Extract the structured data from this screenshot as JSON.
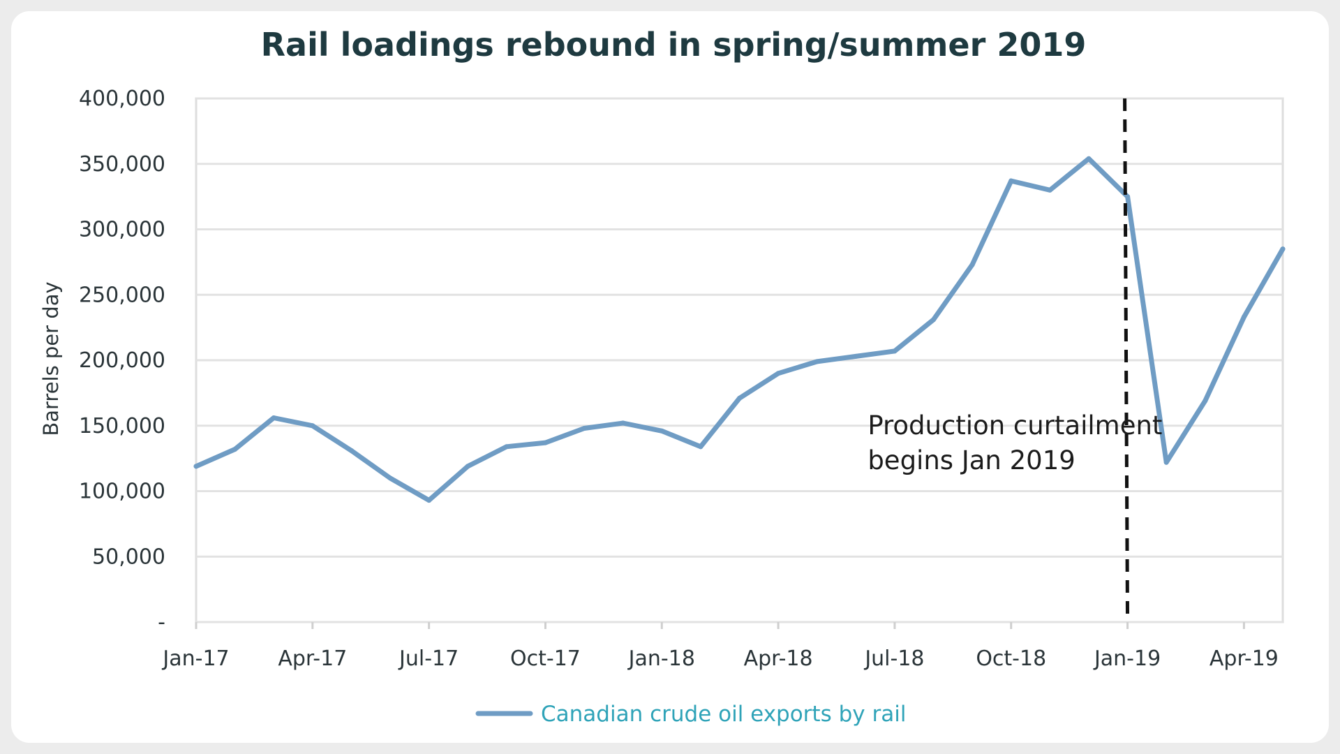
{
  "chart_data": {
    "type": "line",
    "title": "Rail loadings rebound in spring/summer 2019",
    "ylabel": "Barrels per day",
    "xlabel": "",
    "ylim": [
      0,
      400000
    ],
    "y_ticks": [
      {
        "value": 0,
        "label": "-"
      },
      {
        "value": 50000,
        "label": "50,000"
      },
      {
        "value": 100000,
        "label": "100,000"
      },
      {
        "value": 150000,
        "label": "150,000"
      },
      {
        "value": 200000,
        "label": "200,000"
      },
      {
        "value": 250000,
        "label": "250,000"
      },
      {
        "value": 300000,
        "label": "300,000"
      },
      {
        "value": 350000,
        "label": "350,000"
      },
      {
        "value": 400000,
        "label": "400,000"
      }
    ],
    "x": [
      "Jan-17",
      "Feb-17",
      "Mar-17",
      "Apr-17",
      "May-17",
      "Jun-17",
      "Jul-17",
      "Aug-17",
      "Sep-17",
      "Oct-17",
      "Nov-17",
      "Dec-17",
      "Jan-18",
      "Feb-18",
      "Mar-18",
      "Apr-18",
      "May-18",
      "Jun-18",
      "Jul-18",
      "Aug-18",
      "Sep-18",
      "Oct-18",
      "Nov-18",
      "Dec-18",
      "Jan-19",
      "Feb-19",
      "Mar-19",
      "Apr-19",
      "May-19"
    ],
    "x_tick_labels": [
      {
        "index": 0,
        "label": "Jan-17"
      },
      {
        "index": 3,
        "label": "Apr-17"
      },
      {
        "index": 6,
        "label": "Jul-17"
      },
      {
        "index": 9,
        "label": "Oct-17"
      },
      {
        "index": 12,
        "label": "Jan-18"
      },
      {
        "index": 15,
        "label": "Apr-18"
      },
      {
        "index": 18,
        "label": "Jul-18"
      },
      {
        "index": 21,
        "label": "Oct-18"
      },
      {
        "index": 24,
        "label": "Jan-19"
      },
      {
        "index": 27,
        "label": "Apr-19"
      }
    ],
    "series": [
      {
        "name": "Canadian crude oil exports by rail",
        "color": "#6f9cc4",
        "values": [
          119000,
          132000,
          156000,
          150000,
          131000,
          110000,
          93000,
          119000,
          134000,
          137000,
          148000,
          152000,
          146000,
          134000,
          171000,
          190000,
          199000,
          203000,
          207000,
          231000,
          273000,
          337000,
          330000,
          354000,
          325000,
          122000,
          169000,
          233000,
          285000
        ]
      }
    ],
    "reference_line": {
      "x": "Jan-19",
      "style": "dashed",
      "color": "#111111"
    },
    "annotation": {
      "lines": [
        "Production curtailment",
        "begins Jan 2019"
      ],
      "x": "Jun-18",
      "y": 150000
    },
    "grid": true,
    "legend_position": "bottom-center"
  }
}
